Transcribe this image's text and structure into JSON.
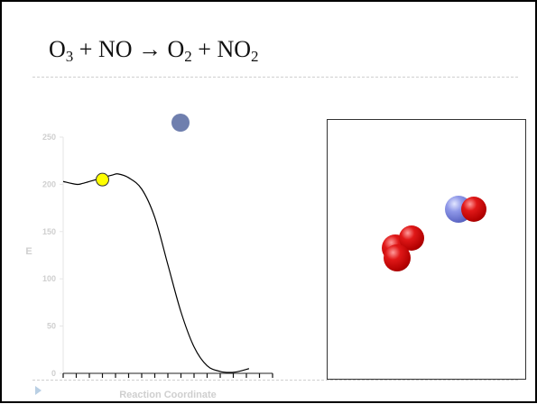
{
  "slide": {
    "title": {
      "o3": "O",
      "o3_sub": "3",
      "plus1": " + ",
      "no": "NO",
      "arrow": " → ",
      "o2": "O",
      "o2_sub": "2",
      "plus2": " + ",
      "no2": "NO",
      "no2_sub": "2"
    }
  },
  "colors": {
    "atom_marker": "#6f7fae",
    "oxygen": "#e01818",
    "nitrogen": "#8f98e8",
    "current_point": "#ffff00",
    "axis_text": "#cfcfcf"
  },
  "chart_data": {
    "type": "line",
    "xlabel": "Reaction Coordinate",
    "ylabel": "E",
    "ylim": [
      0,
      250
    ],
    "yticks": [
      0,
      50,
      100,
      150,
      200,
      250
    ],
    "x_tick_count": 17,
    "grid": false,
    "legend": "none",
    "series": [
      {
        "x": [
          0,
          1,
          1.5,
          3,
          3.8,
          4.2,
          5,
          6,
          7,
          8,
          9,
          10,
          11,
          12,
          12.8,
          13.4,
          14.2
        ],
        "values": [
          203,
          200,
          201,
          207,
          210,
          211,
          207,
          195,
          165,
          115,
          65,
          28,
          8,
          2,
          1,
          2,
          5
        ]
      }
    ],
    "marker": {
      "x": 3,
      "y": 205
    }
  },
  "viewer": {
    "molecules": [
      {
        "name": "O2",
        "atoms": [
          "oxygen",
          "oxygen"
        ]
      },
      {
        "name": "NO",
        "atoms": [
          "nitrogen",
          "oxygen"
        ]
      }
    ]
  }
}
